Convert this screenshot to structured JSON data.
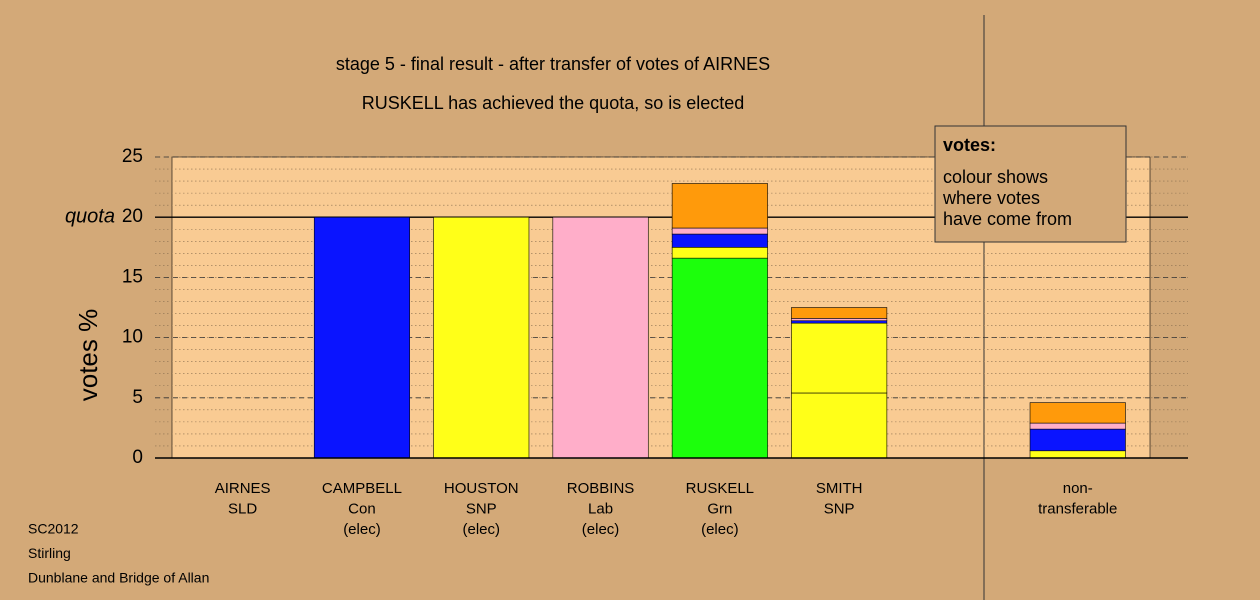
{
  "chart_data": {
    "type": "stacked_bar",
    "title": "stage 5 - final result - after transfer of votes of AIRNES",
    "subtitle": "RUSKELL has achieved the quota, so is elected",
    "y_label": "votes %",
    "categories": [
      [
        "AIRNES",
        "SLD"
      ],
      [
        "CAMPBELL",
        "Con",
        "(elec)"
      ],
      [
        "HOUSTON",
        "SNP",
        "(elec)"
      ],
      [
        "ROBBINS",
        "Lab",
        "(elec)"
      ],
      [
        "RUSKELL",
        "Grn",
        "(elec)"
      ],
      [
        "SMITH",
        "SNP"
      ],
      null,
      [
        "non-",
        "transferable"
      ]
    ],
    "series": [
      {
        "color": "#1cff0c",
        "values": [
          0,
          0,
          0,
          0,
          16.6,
          0,
          null,
          0
        ]
      },
      {
        "color": "#ffff18",
        "values": [
          0,
          0,
          0,
          0,
          0,
          5.4,
          null,
          0
        ]
      },
      {
        "color": "#ffff18",
        "values": [
          0,
          0,
          20,
          0,
          0.9,
          5.8,
          null,
          0.6
        ]
      },
      {
        "color": "#0a14ff",
        "values": [
          0,
          20,
          0,
          0,
          1.1,
          0.2,
          null,
          1.8
        ]
      },
      {
        "color": "#ffaec9",
        "values": [
          0,
          0,
          0,
          20,
          0.5,
          0.2,
          null,
          0.5
        ]
      },
      {
        "color": "#ff9a0b",
        "values": [
          0,
          0,
          0,
          0,
          3.7,
          0.9,
          null,
          1.7
        ]
      }
    ],
    "ylim": [
      0,
      25
    ],
    "yticks": [
      0,
      5,
      10,
      15,
      20,
      25
    ],
    "minor_grid_step": 1,
    "grid": true,
    "quota": {
      "value": 20,
      "label": "quota"
    },
    "legend": {
      "title": "votes:",
      "lines": [
        "colour shows",
        "where votes",
        "have come from"
      ]
    },
    "notes": [
      "SC2012",
      "Stirling",
      "Dunblane and Bridge of Allan"
    ]
  }
}
